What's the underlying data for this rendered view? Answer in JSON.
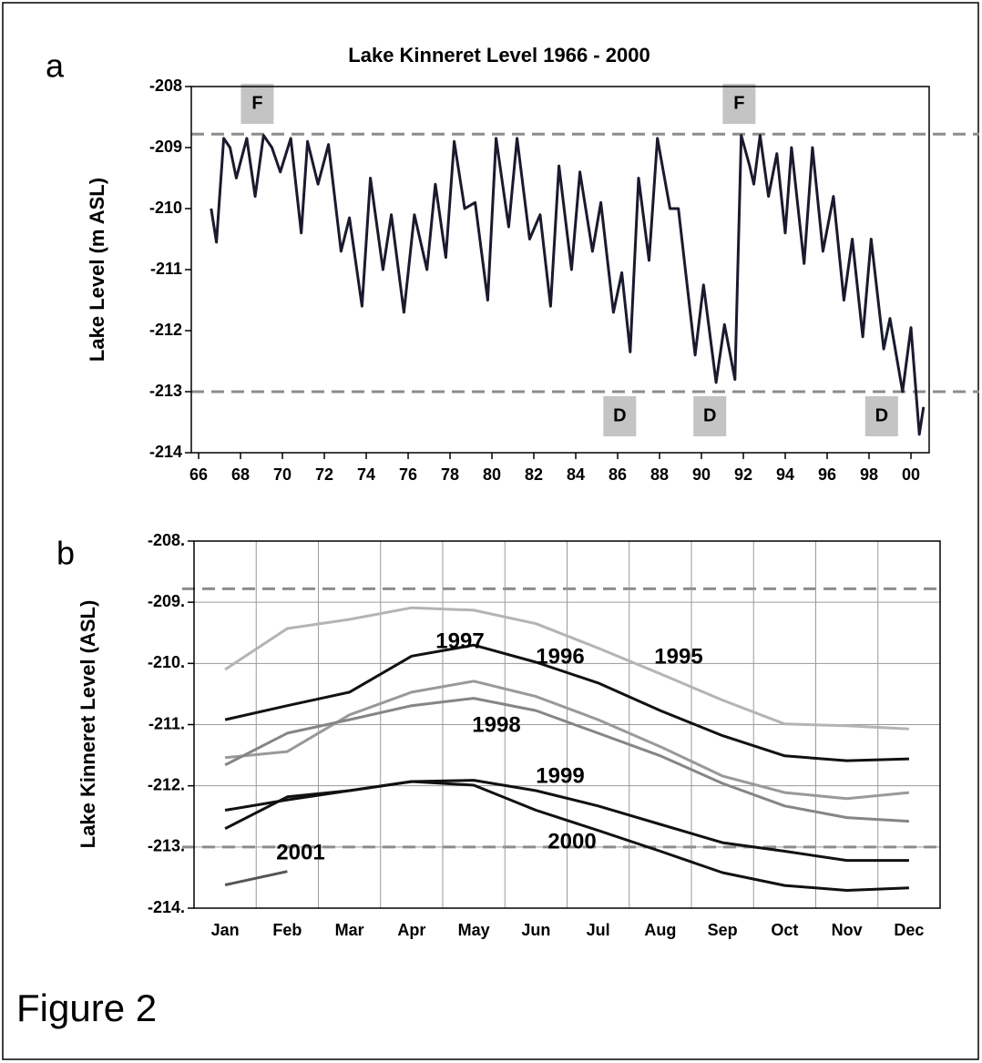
{
  "figure_label": "Figure 2",
  "chart_data": [
    {
      "type": "line",
      "panel": "a",
      "title": "Lake Kinneret Level 1966 - 2000",
      "y_label": "Lake Level (m ASL)",
      "x": [
        1966.6,
        1966.85,
        1967.2,
        1967.5,
        1967.8,
        1968.3,
        1968.7,
        1969.1,
        1969.5,
        1969.9,
        1970.4,
        1970.9,
        1971.2,
        1971.7,
        1972.2,
        1972.8,
        1973.2,
        1973.8,
        1974.2,
        1974.8,
        1975.2,
        1975.8,
        1976.3,
        1976.9,
        1977.3,
        1977.8,
        1978.2,
        1978.7,
        1979.2,
        1979.8,
        1980.2,
        1980.8,
        1981.2,
        1981.8,
        1982.3,
        1982.8,
        1983.2,
        1983.8,
        1984.2,
        1984.8,
        1985.2,
        1985.8,
        1986.2,
        1986.6,
        1987.0,
        1987.5,
        1987.9,
        1988.5,
        1988.9,
        1989.7,
        1990.1,
        1990.7,
        1991.1,
        1991.6,
        1991.9,
        1992.3,
        1992.5,
        1992.8,
        1993.2,
        1993.6,
        1994.0,
        1994.3,
        1994.9,
        1995.3,
        1995.8,
        1996.3,
        1996.8,
        1997.2,
        1997.7,
        1998.1,
        1998.7,
        1999.0,
        1999.6,
        2000.0,
        2000.4,
        2000.6
      ],
      "values": [
        -210.0,
        -210.55,
        -208.85,
        -209.0,
        -209.5,
        -208.85,
        -209.8,
        -208.8,
        -209.0,
        -209.4,
        -208.85,
        -210.4,
        -208.9,
        -209.6,
        -208.95,
        -210.7,
        -210.15,
        -211.6,
        -209.5,
        -211.0,
        -210.1,
        -211.7,
        -210.1,
        -211.0,
        -209.6,
        -210.8,
        -208.9,
        -210.0,
        -209.9,
        -211.5,
        -208.85,
        -210.3,
        -208.85,
        -210.5,
        -210.1,
        -211.6,
        -209.3,
        -211.0,
        -209.4,
        -210.7,
        -209.9,
        -211.7,
        -211.05,
        -212.35,
        -209.5,
        -210.85,
        -208.85,
        -210.0,
        -210.0,
        -212.4,
        -211.25,
        -212.85,
        -211.9,
        -212.8,
        -208.8,
        -209.3,
        -209.6,
        -208.8,
        -209.8,
        -209.1,
        -210.4,
        -209.0,
        -210.9,
        -209.0,
        -210.7,
        -209.8,
        -211.5,
        -210.5,
        -212.1,
        -210.5,
        -212.3,
        -211.8,
        -213.0,
        -211.95,
        -213.7,
        -213.25
      ],
      "color": "#1a1a2e",
      "xlim": [
        1965.65,
        2000.87
      ],
      "xticks": [
        {
          "value": 1966,
          "label": "66"
        },
        {
          "value": 1968,
          "label": "68"
        },
        {
          "value": 1970,
          "label": "70"
        },
        {
          "value": 1972,
          "label": "72"
        },
        {
          "value": 1974,
          "label": "74"
        },
        {
          "value": 1976,
          "label": "76"
        },
        {
          "value": 1978,
          "label": "78"
        },
        {
          "value": 1980,
          "label": "80"
        },
        {
          "value": 1982,
          "label": "82"
        },
        {
          "value": 1984,
          "label": "84"
        },
        {
          "value": 1986,
          "label": "86"
        },
        {
          "value": 1988,
          "label": "88"
        },
        {
          "value": 1990,
          "label": "90"
        },
        {
          "value": 1992,
          "label": "92"
        },
        {
          "value": 1994,
          "label": "94"
        },
        {
          "value": 1996,
          "label": "96"
        },
        {
          "value": 1998,
          "label": "98"
        },
        {
          "value": 2000,
          "label": "00"
        }
      ],
      "ylim": [
        -214,
        -208
      ],
      "yticks": [
        -214,
        -213,
        -212,
        -211,
        -210,
        -209,
        -208
      ],
      "grid": false,
      "hlines": [
        -208.78,
        -213
      ],
      "annotations": [
        {
          "text": "F",
          "x": 1968.8,
          "side": "top"
        },
        {
          "text": "F",
          "x": 1991.8,
          "side": "top"
        },
        {
          "text": "D",
          "x": 1986.1,
          "side": "bottom"
        },
        {
          "text": "D",
          "x": 1990.4,
          "side": "bottom"
        },
        {
          "text": "D",
          "x": 1998.6,
          "side": "bottom"
        }
      ]
    },
    {
      "type": "multiline",
      "panel": "b",
      "y_label": "Lake Kinneret Level (ASL)",
      "categories": [
        "Jan",
        "Feb",
        "Mar",
        "Apr",
        "May",
        "Jun",
        "Jul",
        "Aug",
        "Sep",
        "Oct",
        "Nov",
        "Dec"
      ],
      "series": [
        {
          "name": "1995",
          "color": "#b4b4b4",
          "values": [
            -210.1,
            -209.43,
            -209.28,
            -209.09,
            -209.13,
            -209.35,
            -209.75,
            -210.17,
            -210.6,
            -210.99,
            -211.02,
            -211.07
          ]
        },
        {
          "name": "1996",
          "color": "#111111",
          "values": [
            -210.92,
            -210.69,
            -210.47,
            -209.88,
            -209.7,
            -209.98,
            -210.32,
            -210.77,
            -211.18,
            -211.51,
            -211.59,
            -211.56
          ]
        },
        {
          "name": "1997",
          "color": "#999999",
          "values": [
            -211.54,
            -211.44,
            -210.84,
            -210.47,
            -210.29,
            -210.54,
            -210.92,
            -211.36,
            -211.84,
            -212.11,
            -212.21,
            -212.11
          ]
        },
        {
          "name": "1998",
          "color": "#858585",
          "values": [
            -211.66,
            -211.14,
            -210.92,
            -210.69,
            -210.57,
            -210.77,
            -211.14,
            -211.51,
            -211.96,
            -212.33,
            -212.52,
            -212.58
          ]
        },
        {
          "name": "1999",
          "color": "#111111",
          "values": [
            -212.4,
            -212.23,
            -212.08,
            -211.93,
            -211.91,
            -212.08,
            -212.33,
            -212.63,
            -212.93,
            -213.07,
            -213.22,
            -213.22
          ]
        },
        {
          "name": "2000",
          "color": "#111111",
          "values": [
            -212.7,
            -212.18,
            -212.08,
            -211.93,
            -211.99,
            -212.4,
            -212.73,
            -213.07,
            -213.42,
            -213.63,
            -213.71,
            -213.67
          ]
        },
        {
          "name": "2001",
          "color": "#555555",
          "values": [
            -213.62,
            -213.4,
            null,
            null,
            null,
            null,
            null,
            null,
            null,
            null,
            null,
            null
          ]
        }
      ],
      "ylim": [
        -214,
        -208
      ],
      "yticks": [
        {
          "value": -214,
          "label": "-214."
        },
        {
          "value": -213,
          "label": "-213."
        },
        {
          "value": -212,
          "label": "-212."
        },
        {
          "value": -211,
          "label": "-211."
        },
        {
          "value": -210,
          "label": "-210."
        },
        {
          "value": -209,
          "label": "-209."
        },
        {
          "value": -208,
          "label": "-208."
        }
      ],
      "grid": true,
      "hlines": [
        -208.78,
        -213
      ]
    }
  ]
}
